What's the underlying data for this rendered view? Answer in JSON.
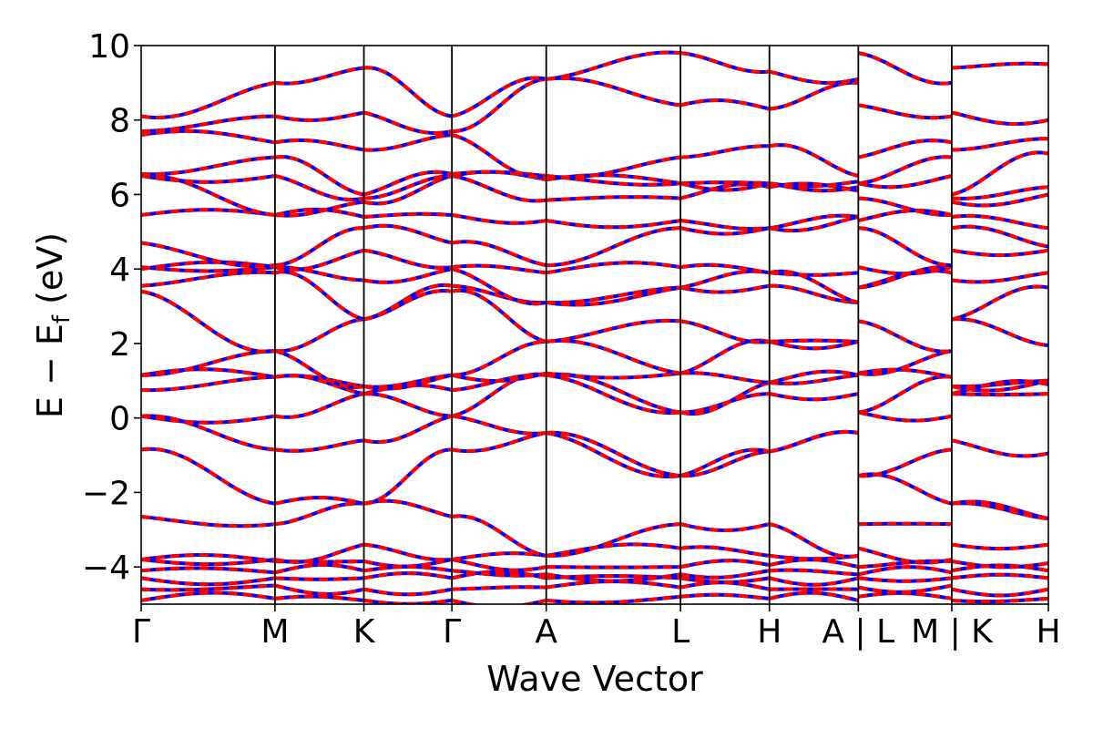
{
  "chart_data": {
    "type": "line",
    "title": "",
    "xlabel": "Wave Vector",
    "ylabel": "E − E_f (eV)",
    "ylabel_parts": {
      "main": "E − E",
      "sub": "f",
      "unit": " (eV)"
    },
    "ylim": [
      -5,
      10
    ],
    "y_ticks": [
      -4,
      -2,
      0,
      2,
      4,
      6,
      8,
      10
    ],
    "y_tick_labels": [
      "−4",
      "−2",
      "0",
      "2",
      "4",
      "6",
      "8",
      "10"
    ],
    "x_range": [
      0,
      1
    ],
    "k_points": [
      {
        "label": "Γ",
        "x": 0.0
      },
      {
        "label": "M",
        "x": 0.1475
      },
      {
        "label": "K",
        "x": 0.2455
      },
      {
        "label": "Γ",
        "x": 0.3425
      },
      {
        "label": "A",
        "x": 0.4465
      },
      {
        "label": "L",
        "x": 0.5945
      },
      {
        "label": "H",
        "x": 0.6925
      },
      {
        "label": "A|L",
        "x": 0.7905
      },
      {
        "label": "M|K",
        "x": 0.8935
      },
      {
        "label": "H",
        "x": 1.0
      }
    ],
    "grid": false,
    "legend": "none",
    "series_styles": [
      {
        "color": "#0000ff",
        "dash": "solid"
      },
      {
        "color": "#ff0000",
        "dash": "dashed"
      }
    ],
    "bands_at_kpoints": {
      "labels_order": [
        "Γ",
        "M",
        "K",
        "Γ",
        "A",
        "L",
        "H",
        "A",
        "L",
        "M",
        "K",
        "H"
      ],
      "band_energies": [
        [
          -4.9,
          -4.85,
          -4.9,
          -4.9,
          -4.9,
          -4.8,
          -4.85,
          -4.9,
          -4.8,
          -4.85,
          -4.9,
          -4.85
        ],
        [
          -4.6,
          -4.5,
          -4.6,
          -4.6,
          -4.55,
          -4.55,
          -4.6,
          -4.6,
          -4.55,
          -4.5,
          -4.6,
          -4.6
        ],
        [
          -4.3,
          -4.3,
          -4.3,
          -4.3,
          -4.3,
          -4.3,
          -4.3,
          -4.3,
          -4.3,
          -4.3,
          -4.3,
          -4.3
        ],
        [
          -4.1,
          -4.15,
          -4.1,
          -4.1,
          -4.2,
          -4.2,
          -4.1,
          -4.2,
          -4.2,
          -4.15,
          -4.1,
          -4.1
        ],
        [
          -3.8,
          -3.85,
          -3.85,
          -3.8,
          -4.0,
          -4.0,
          -3.95,
          -4.0,
          -4.0,
          -3.85,
          -3.85,
          -3.9
        ],
        [
          -3.8,
          -3.8,
          -3.4,
          -3.8,
          -3.7,
          -3.5,
          -3.7,
          -3.7,
          -3.5,
          -3.8,
          -3.4,
          -3.4
        ],
        [
          -2.65,
          -2.85,
          -2.3,
          -2.65,
          -3.7,
          -2.85,
          -2.85,
          -3.7,
          -2.85,
          -2.85,
          -2.3,
          -2.7
        ],
        [
          -0.85,
          -2.3,
          -2.3,
          -0.85,
          -0.4,
          -1.55,
          -0.9,
          -0.4,
          -1.55,
          -2.3,
          -2.3,
          -2.7
        ],
        [
          0.05,
          -0.85,
          -0.6,
          0.05,
          -0.4,
          -1.55,
          -0.9,
          -0.4,
          -1.55,
          -0.85,
          -0.6,
          -0.95
        ],
        [
          0.05,
          0.05,
          0.65,
          0.05,
          1.15,
          0.15,
          0.65,
          0.65,
          0.15,
          0.05,
          0.65,
          0.65
        ],
        [
          0.75,
          1.1,
          0.65,
          0.75,
          1.15,
          0.15,
          0.95,
          1.15,
          0.15,
          1.1,
          0.65,
          0.9
        ],
        [
          1.15,
          1.1,
          0.85,
          1.15,
          1.2,
          1.2,
          0.95,
          1.15,
          1.2,
          1.1,
          0.85,
          1.0
        ],
        [
          1.15,
          1.8,
          0.85,
          1.15,
          2.05,
          1.2,
          2.05,
          2.05,
          1.2,
          1.8,
          0.85,
          1.0
        ],
        [
          3.4,
          1.8,
          2.65,
          3.4,
          2.05,
          2.6,
          2.05,
          2.05,
          2.6,
          1.8,
          2.65,
          1.95
        ],
        [
          3.55,
          3.9,
          2.65,
          3.55,
          3.1,
          3.5,
          3.55,
          3.1,
          3.5,
          3.9,
          2.65,
          3.5
        ],
        [
          4.0,
          4.05,
          3.7,
          4.0,
          3.1,
          3.5,
          3.9,
          3.1,
          3.5,
          4.05,
          3.7,
          3.9
        ],
        [
          4.05,
          4.05,
          4.5,
          4.05,
          3.9,
          4.05,
          3.9,
          3.9,
          4.05,
          4.05,
          4.5,
          4.5
        ],
        [
          4.7,
          4.1,
          5.1,
          4.7,
          4.1,
          5.1,
          5.1,
          5.4,
          5.1,
          4.1,
          5.1,
          4.6
        ],
        [
          5.45,
          5.45,
          5.4,
          5.45,
          5.3,
          5.3,
          5.1,
          5.4,
          5.3,
          5.45,
          5.4,
          5.1
        ],
        [
          6.5,
          5.45,
          5.8,
          6.5,
          5.85,
          5.9,
          6.2,
          6.1,
          5.9,
          5.45,
          5.8,
          6.0
        ],
        [
          6.5,
          6.5,
          5.9,
          6.5,
          6.4,
          6.3,
          6.3,
          6.2,
          6.3,
          6.5,
          5.9,
          6.2
        ],
        [
          6.55,
          7.0,
          6.0,
          6.55,
          6.5,
          6.3,
          6.3,
          6.35,
          6.3,
          7.0,
          6.0,
          7.1
        ],
        [
          7.6,
          7.4,
          7.2,
          7.6,
          6.5,
          7.0,
          7.3,
          6.5,
          7.0,
          7.4,
          7.2,
          7.5
        ],
        [
          7.7,
          8.1,
          8.2,
          7.7,
          9.1,
          8.4,
          8.3,
          9.0,
          8.4,
          8.1,
          8.2,
          8.0
        ],
        [
          8.1,
          9.0,
          9.4,
          8.1,
          9.1,
          9.8,
          9.3,
          9.1,
          9.8,
          9.0,
          9.4,
          9.5
        ]
      ]
    }
  }
}
